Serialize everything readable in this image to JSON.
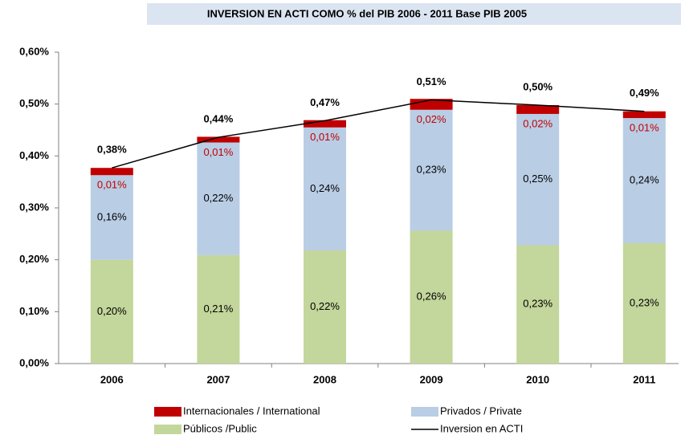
{
  "chart_data": {
    "type": "bar",
    "stacked": true,
    "title": "INVERSION EN ACTI COMO % del PIB 2006 - 2011 Base PIB 2005",
    "categories": [
      "2006",
      "2007",
      "2008",
      "2009",
      "2010",
      "2011"
    ],
    "ylim": [
      0,
      0.6
    ],
    "yticks": [
      {
        "value": 0,
        "label": "0,00%"
      },
      {
        "value": 0.1,
        "label": "0,10%"
      },
      {
        "value": 0.2,
        "label": "0,20%"
      },
      {
        "value": 0.3,
        "label": "0,30%"
      },
      {
        "value": 0.4,
        "label": "0,40%"
      },
      {
        "value": 0.5,
        "label": "0,50%"
      },
      {
        "value": 0.6,
        "label": "0,60%"
      }
    ],
    "series": [
      {
        "name": "Públicos /Public",
        "type": "bar",
        "color": "#c3d69b",
        "label_color": "#000000",
        "values": [
          0.2,
          0.209,
          0.218,
          0.256,
          0.228,
          0.232
        ],
        "value_labels": [
          "0,20%",
          "0,21%",
          "0,22%",
          "0,26%",
          "0,23%",
          "0,23%"
        ]
      },
      {
        "name": "Privados / Private",
        "type": "bar",
        "color": "#b9cde5",
        "label_color": "#000000",
        "values": [
          0.163,
          0.217,
          0.237,
          0.233,
          0.253,
          0.241
        ],
        "value_labels": [
          "0,16%",
          "0,22%",
          "0,24%",
          "0,23%",
          "0,25%",
          "0,24%"
        ]
      },
      {
        "name": "Internacionales / International",
        "type": "bar",
        "color": "#c00000",
        "label_color": "#c00000",
        "values": [
          0.014,
          0.011,
          0.014,
          0.021,
          0.017,
          0.013
        ],
        "value_labels": [
          "0,01%",
          "0,01%",
          "0,01%",
          "0,02%",
          "0,02%",
          "0,01%"
        ]
      },
      {
        "name": "Inversion en ACTI",
        "type": "line",
        "color": "#000000",
        "label_color": "#000000",
        "values": [
          0.377,
          0.436,
          0.468,
          0.508,
          0.498,
          0.486
        ],
        "value_labels": [
          "0,38%",
          "0,44%",
          "0,47%",
          "0,51%",
          "0,50%",
          "0,49%"
        ]
      }
    ]
  }
}
